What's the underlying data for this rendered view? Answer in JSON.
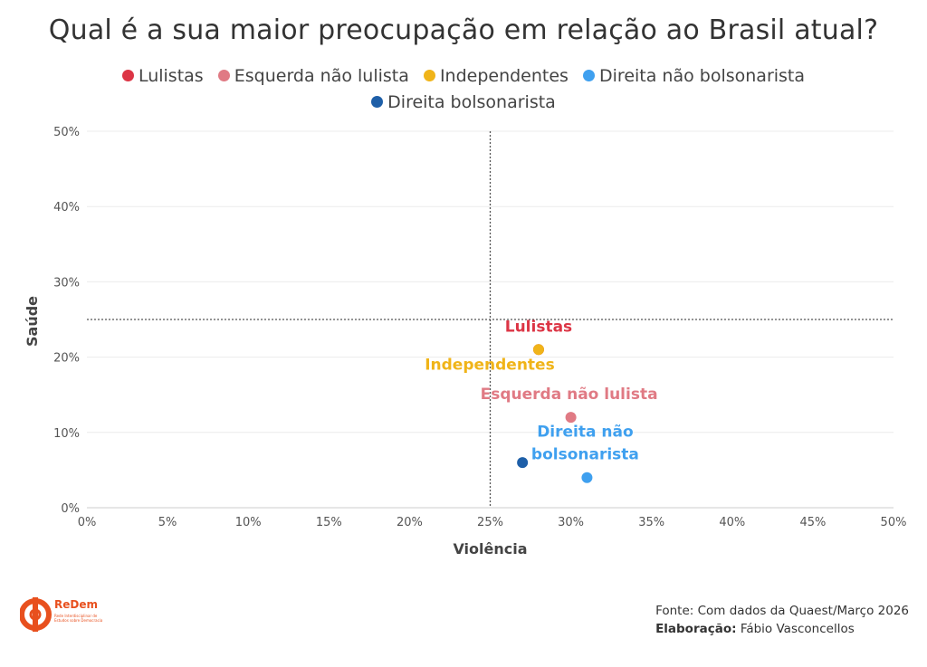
{
  "chart_data": {
    "type": "scatter",
    "title": "Qual é a sua maior preocupação em relação ao Brasil atual?",
    "xlabel": "Violência",
    "ylabel": "Saúde",
    "xlim": [
      0,
      50
    ],
    "ylim": [
      0,
      50
    ],
    "xticks": [
      "0%",
      "5%",
      "10%",
      "15%",
      "20%",
      "25%",
      "30%",
      "35%",
      "40%",
      "45%",
      "50%"
    ],
    "yticks": [
      "0%",
      "10%",
      "20%",
      "30%",
      "40%",
      "50%"
    ],
    "reference_lines": {
      "x": 25,
      "y": 25
    },
    "legend_position": "top-center",
    "series": [
      {
        "name": "Lulistas",
        "x": 28,
        "y": 21,
        "color": "#dc3545",
        "label": "Lulistas"
      },
      {
        "name": "Esquerda não lulista",
        "x": 30,
        "y": 12,
        "color": "#e07a84",
        "label": "Esquerda não lulista"
      },
      {
        "name": "Independentes",
        "x": 28,
        "y": 21,
        "color": "#f0b419",
        "label": "Independentes"
      },
      {
        "name": "Direita não bolsonarista",
        "x": 31,
        "y": 4,
        "color": "#3fa0ef",
        "label": "Direita não bolsonarista",
        "label_lines": [
          "Direita não",
          "bolsonarista"
        ]
      },
      {
        "name": "Direita bolsonarista",
        "x": 27,
        "y": 6,
        "color": "#1e5fa8",
        "label": ""
      }
    ]
  },
  "source": {
    "text": "Fonte: Com dados da Quaest/Março 2026",
    "credit_label": "Elaboração:",
    "credit_name": "Fábio Vasconcellos"
  },
  "logo": {
    "name": "ReDem",
    "tagline": "Rede Interdisciplinar de Estudos sobre Democracia"
  }
}
